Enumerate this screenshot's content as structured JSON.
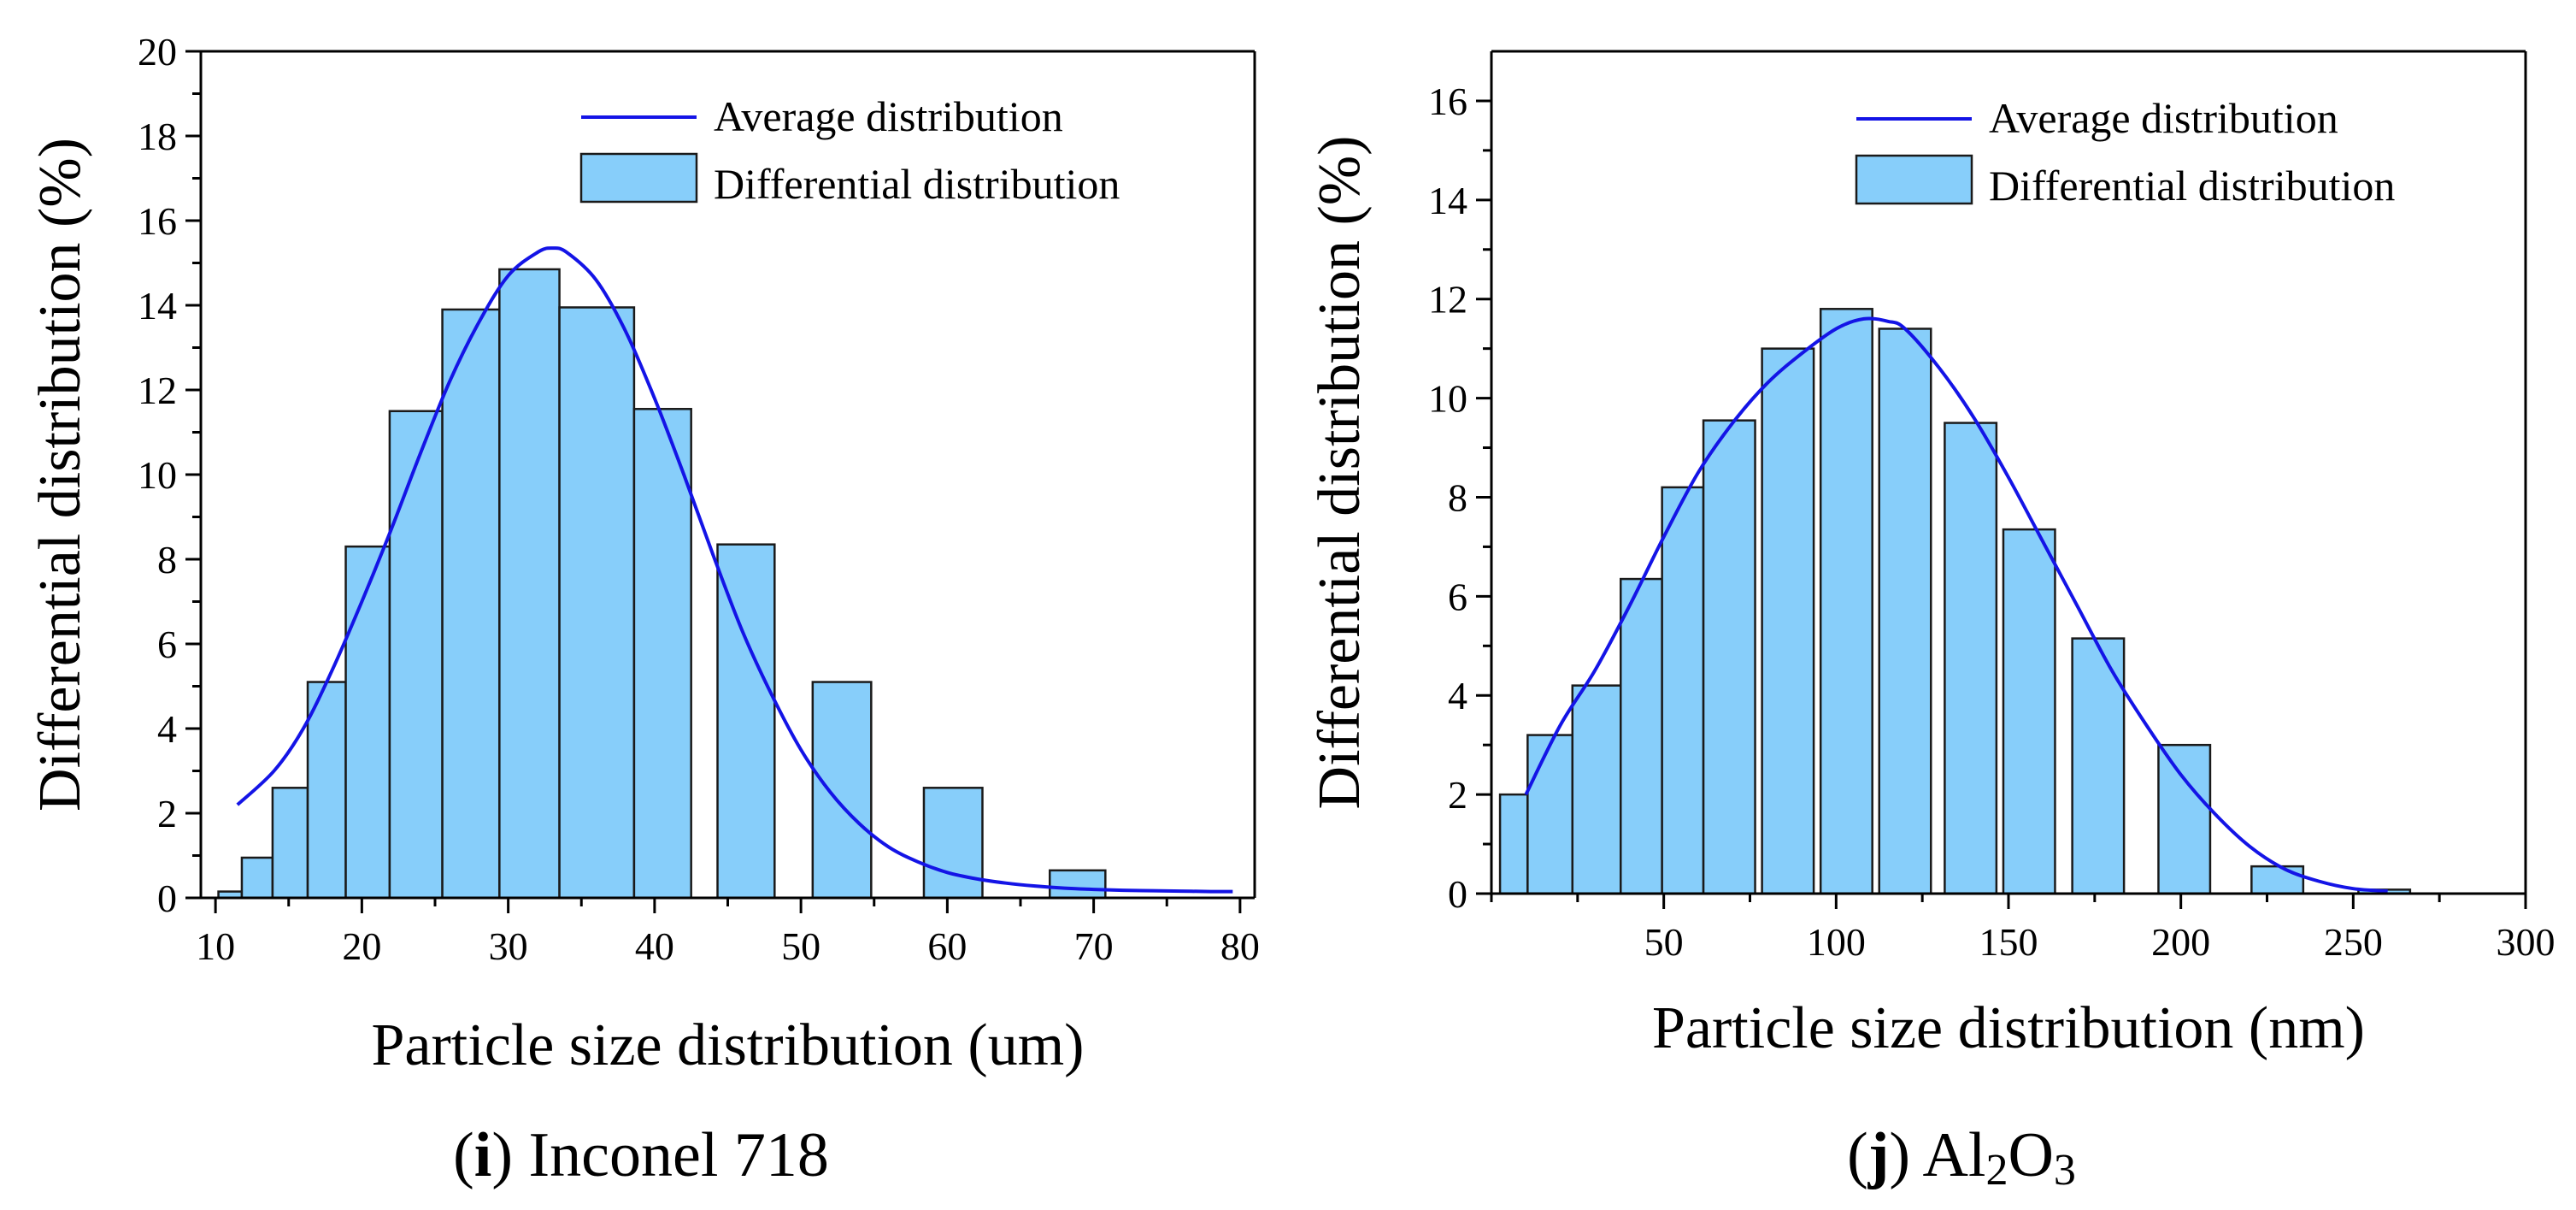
{
  "chart_data": [
    {
      "type": "bar",
      "caption": {
        "letter": "i",
        "open": "(",
        "close": ")",
        "text": " Inconel 718"
      },
      "xlabel": "Particle size distribution (um)",
      "ylabel": "Differential distribution (%)",
      "xlim": [
        9,
        81
      ],
      "ylim": [
        0,
        20
      ],
      "xticks": [
        10,
        20,
        30,
        40,
        50,
        60,
        70,
        80
      ],
      "yticks": [
        0,
        2,
        4,
        6,
        8,
        10,
        12,
        14,
        16,
        18,
        20
      ],
      "legend": {
        "position": "top-right",
        "curve_label": "Average distribution",
        "bar_label": "Differential distribution"
      },
      "bars": [
        {
          "x0": 10.2,
          "x1": 11.8,
          "value": 0.15
        },
        {
          "x0": 11.8,
          "x1": 13.9,
          "value": 0.95
        },
        {
          "x0": 13.9,
          "x1": 16.3,
          "value": 2.6
        },
        {
          "x0": 16.3,
          "x1": 18.9,
          "value": 5.1
        },
        {
          "x0": 18.9,
          "x1": 21.9,
          "value": 8.3
        },
        {
          "x0": 21.9,
          "x1": 25.5,
          "value": 11.5
        },
        {
          "x0": 25.5,
          "x1": 29.4,
          "value": 13.9
        },
        {
          "x0": 29.4,
          "x1": 33.5,
          "value": 14.85
        },
        {
          "x0": 33.5,
          "x1": 38.6,
          "value": 13.95
        },
        {
          "x0": 38.6,
          "x1": 42.5,
          "value": 11.55
        },
        {
          "x0": 44.3,
          "x1": 48.2,
          "value": 8.35
        },
        {
          "x0": 50.8,
          "x1": 54.8,
          "value": 5.1
        },
        {
          "x0": 58.4,
          "x1": 62.4,
          "value": 2.6
        },
        {
          "x0": 67.0,
          "x1": 70.8,
          "value": 0.65
        }
      ],
      "curve": {
        "x": [
          11.5,
          14,
          16,
          18,
          20,
          22,
          24,
          26,
          28,
          30,
          32,
          33,
          34,
          36,
          38,
          40,
          42,
          44,
          46,
          48,
          50,
          52,
          54,
          56,
          58,
          60,
          62,
          64,
          66,
          68,
          70,
          72,
          74,
          76,
          78,
          79.5
        ],
        "y": [
          2.2,
          3.0,
          4.0,
          5.4,
          7.0,
          8.7,
          10.5,
          12.2,
          13.6,
          14.7,
          15.25,
          15.35,
          15.25,
          14.6,
          13.4,
          11.8,
          10.0,
          8.1,
          6.3,
          4.8,
          3.5,
          2.5,
          1.75,
          1.2,
          0.85,
          0.6,
          0.45,
          0.35,
          0.28,
          0.23,
          0.2,
          0.18,
          0.17,
          0.16,
          0.15,
          0.15
        ]
      }
    },
    {
      "type": "bar",
      "caption": {
        "letter": "j",
        "open": "(",
        "close": ")",
        "text": " Al",
        "sub1": "2",
        "mid": "O",
        "sub2": "3"
      },
      "xlabel": "Particle size distribution (nm)",
      "ylabel": "Differential distribution (%)",
      "xlim": [
        0,
        300
      ],
      "ylim": [
        0,
        17
      ],
      "xticks": [
        50,
        100,
        150,
        200,
        250,
        300
      ],
      "yticks": [
        0,
        2,
        4,
        6,
        8,
        10,
        12,
        14,
        16
      ],
      "legend": {
        "position": "top-right",
        "curve_label": "Average distribution",
        "bar_label": "Differential distribution"
      },
      "bars": [
        {
          "x0": 2.5,
          "x1": 10.5,
          "value": 2.0
        },
        {
          "x0": 10.5,
          "x1": 23.5,
          "value": 3.2
        },
        {
          "x0": 23.5,
          "x1": 37.5,
          "value": 4.2
        },
        {
          "x0": 37.5,
          "x1": 49.5,
          "value": 6.35
        },
        {
          "x0": 49.5,
          "x1": 61.5,
          "value": 8.2
        },
        {
          "x0": 61.5,
          "x1": 76.5,
          "value": 9.55
        },
        {
          "x0": 78.5,
          "x1": 93.5,
          "value": 11.0
        },
        {
          "x0": 95.5,
          "x1": 110.5,
          "value": 11.8
        },
        {
          "x0": 112.5,
          "x1": 127.5,
          "value": 11.4
        },
        {
          "x0": 131.5,
          "x1": 146.5,
          "value": 9.5
        },
        {
          "x0": 148.5,
          "x1": 163.5,
          "value": 7.35
        },
        {
          "x0": 168.5,
          "x1": 183.5,
          "value": 5.15
        },
        {
          "x0": 193.5,
          "x1": 208.5,
          "value": 3.0
        },
        {
          "x0": 220.5,
          "x1": 235.5,
          "value": 0.55
        },
        {
          "x0": 251.5,
          "x1": 266.5,
          "value": 0.08
        }
      ],
      "curve": {
        "x": [
          10,
          20,
          30,
          40,
          50,
          60,
          70,
          80,
          90,
          100,
          108,
          115,
          120,
          130,
          140,
          150,
          160,
          170,
          180,
          190,
          200,
          210,
          220,
          230,
          240,
          250,
          260
        ],
        "y": [
          2.0,
          3.4,
          4.5,
          5.8,
          7.2,
          8.5,
          9.5,
          10.3,
          10.9,
          11.4,
          11.6,
          11.55,
          11.4,
          10.6,
          9.6,
          8.4,
          7.1,
          5.8,
          4.5,
          3.4,
          2.4,
          1.6,
          0.95,
          0.5,
          0.25,
          0.1,
          0.05
        ]
      }
    }
  ]
}
